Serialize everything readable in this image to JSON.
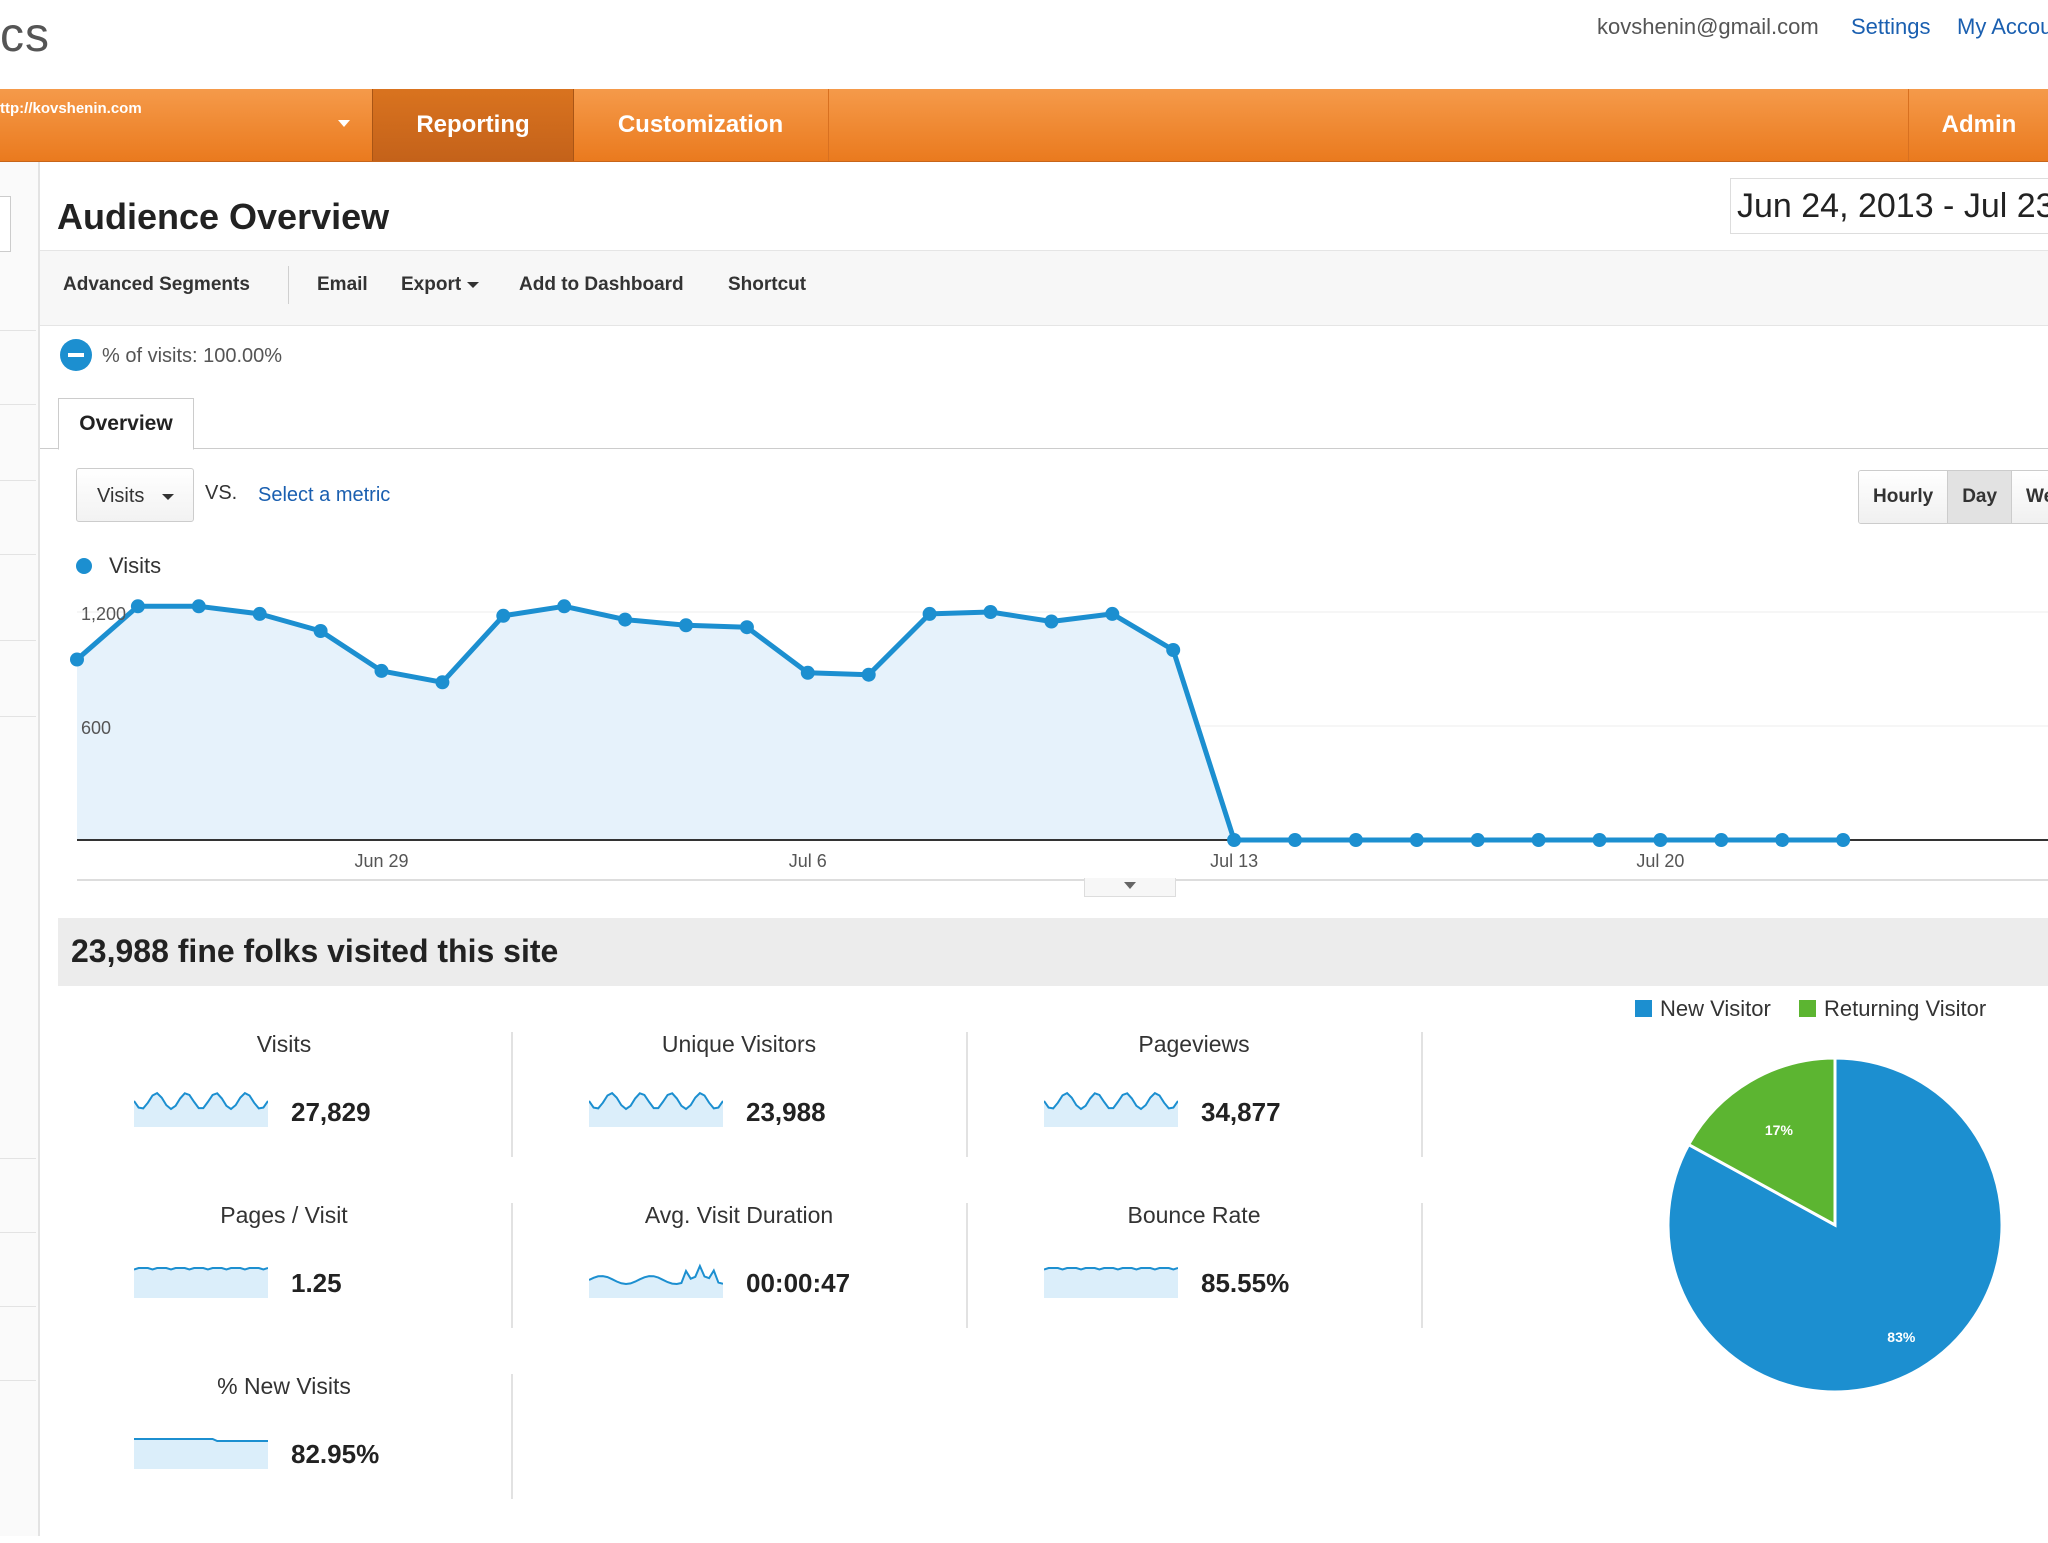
{
  "topbar": {
    "brand": "cs",
    "email": "kovshenin@gmail.com",
    "settings": "Settings",
    "account": "My Accou"
  },
  "nav": {
    "url": "ttp://kovshenin.com",
    "tabs": [
      "Reporting",
      "Customization"
    ],
    "admin": "Admin"
  },
  "header": {
    "title": "Audience Overview",
    "date_range": "Jun 24, 2013 - Jul 23"
  },
  "toolbar": {
    "segments": "Advanced Segments",
    "email": "Email",
    "export": "Export",
    "add_dashboard": "Add to Dashboard",
    "shortcut": "Shortcut"
  },
  "segment": {
    "text": "% of visits: 100.00%"
  },
  "tab_overview": "Overview",
  "metric_select": {
    "value": "Visits",
    "vs": "VS.",
    "select_metric": "Select a metric"
  },
  "time_buttons": [
    "Hourly",
    "Day",
    "We"
  ],
  "colors": {
    "accent": "#1c8fd0",
    "orange": "#ef8a2d",
    "green": "#5cb531"
  },
  "chart_data": {
    "type": "area",
    "series": [
      {
        "name": "Visits",
        "values": [
          950,
          1230,
          1230,
          1190,
          1100,
          890,
          830,
          1180,
          1230,
          1160,
          1130,
          1120,
          880,
          870,
          1190,
          1200,
          1150,
          1190,
          1000,
          0,
          0,
          0,
          0,
          0,
          0,
          0,
          0,
          0,
          0,
          0
        ]
      }
    ],
    "x": [
      "Jun 24",
      "Jun 25",
      "Jun 26",
      "Jun 27",
      "Jun 28",
      "Jun 29",
      "Jun 30",
      "Jul 1",
      "Jul 2",
      "Jul 3",
      "Jul 4",
      "Jul 5",
      "Jul 6",
      "Jul 7",
      "Jul 8",
      "Jul 9",
      "Jul 10",
      "Jul 11",
      "Jul 12",
      "Jul 13",
      "Jul 14",
      "Jul 15",
      "Jul 16",
      "Jul 17",
      "Jul 18",
      "Jul 19",
      "Jul 20",
      "Jul 21",
      "Jul 22",
      "Jul 23"
    ],
    "x_ticks": [
      "Jun 29",
      "Jul 6",
      "Jul 13",
      "Jul 20"
    ],
    "y_ticks": [
      "1,200",
      "600"
    ],
    "ylim": [
      0,
      1300
    ]
  },
  "summary": {
    "title": "23,988 fine folks visited this site",
    "metrics": [
      {
        "label": "Visits",
        "value": "27,829"
      },
      {
        "label": "Unique Visitors",
        "value": "23,988"
      },
      {
        "label": "Pageviews",
        "value": "34,877"
      },
      {
        "label": "Pages / Visit",
        "value": "1.25"
      },
      {
        "label": "Avg. Visit Duration",
        "value": "00:00:47"
      },
      {
        "label": "Bounce Rate",
        "value": "85.55%"
      },
      {
        "label": "% New Visits",
        "value": "82.95%"
      }
    ]
  },
  "pie": {
    "legend": [
      "New Visitor",
      "Returning Visitor"
    ],
    "slices": [
      {
        "name": "New Visitor",
        "value": 83,
        "label": "83%",
        "color": "#1c8fd0"
      },
      {
        "name": "Returning Visitor",
        "value": 17,
        "label": "17%",
        "color": "#5cb531"
      }
    ]
  }
}
